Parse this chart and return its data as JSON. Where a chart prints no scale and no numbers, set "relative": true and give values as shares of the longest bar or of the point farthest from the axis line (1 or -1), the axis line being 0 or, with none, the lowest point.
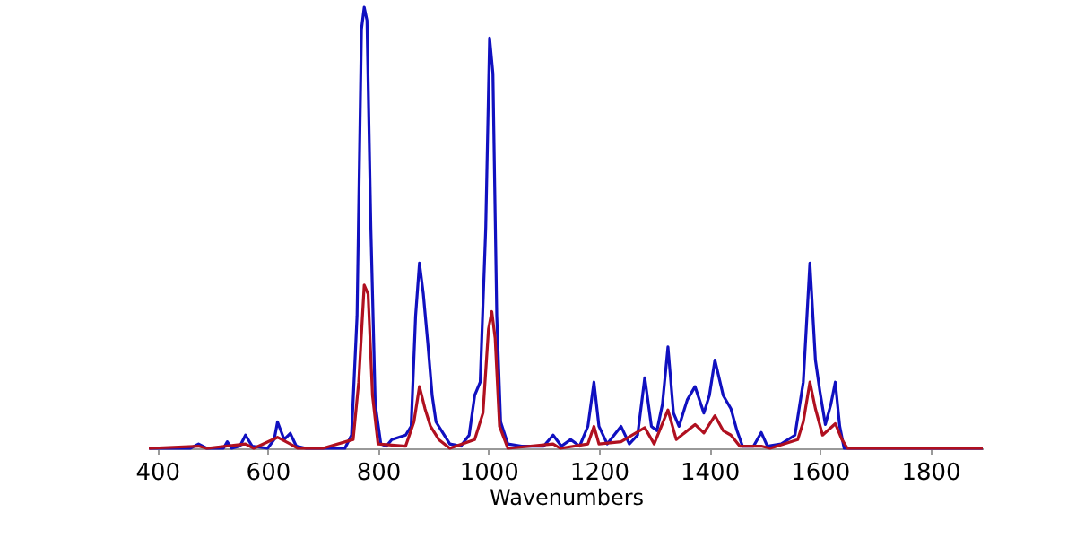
{
  "chart_data": {
    "type": "line",
    "xlabel": "Wavenumbers",
    "relative": true,
    "xlim": [
      385,
      1895
    ],
    "xticks": [
      400,
      600,
      800,
      1000,
      1200,
      1400,
      1600,
      1800
    ],
    "series": [
      {
        "color": "#1010c0",
        "x": [
          385,
          460,
          475,
          490,
          520,
          527,
          535,
          550,
          560,
          572,
          600,
          612,
          618,
          630,
          641,
          652,
          670,
          740,
          752,
          762,
          770,
          775,
          780,
          787,
          795,
          805,
          815,
          825,
          850,
          860,
          868,
          875,
          882,
          890,
          898,
          905,
          915,
          930,
          950,
          965,
          975,
          985,
          995,
          1002,
          1008,
          1015,
          1022,
          1035,
          1060,
          1100,
          1117,
          1132,
          1149,
          1165,
          1180,
          1191,
          1200,
          1215,
          1240,
          1255,
          1270,
          1283,
          1295,
          1305,
          1315,
          1325,
          1335,
          1345,
          1360,
          1374,
          1390,
          1400,
          1410,
          1425,
          1439,
          1450,
          1460,
          1480,
          1494,
          1505,
          1530,
          1555,
          1570,
          1582,
          1592,
          1600,
          1610,
          1620,
          1628,
          1636,
          1644,
          1700,
          1895
        ],
        "values": [
          0,
          0,
          0.01,
          0,
          0,
          0.015,
          0,
          0.005,
          0.03,
          0.005,
          0,
          0.02,
          0.06,
          0.02,
          0.034,
          0.005,
          0,
          0,
          0.03,
          0.3,
          0.95,
          1,
          0.97,
          0.5,
          0.1,
          0.01,
          0.005,
          0.02,
          0.03,
          0.05,
          0.3,
          0.42,
          0.35,
          0.24,
          0.12,
          0.06,
          0.04,
          0.01,
          0.005,
          0.03,
          0.12,
          0.15,
          0.5,
          0.93,
          0.85,
          0.3,
          0.06,
          0.01,
          0.005,
          0.005,
          0.03,
          0.005,
          0.02,
          0.005,
          0.05,
          0.15,
          0.05,
          0.01,
          0.05,
          0.01,
          0.03,
          0.16,
          0.05,
          0.04,
          0.1,
          0.23,
          0.08,
          0.05,
          0.11,
          0.14,
          0.08,
          0.12,
          0.2,
          0.12,
          0.09,
          0.04,
          0.005,
          0.005,
          0.036,
          0.005,
          0.01,
          0.03,
          0.15,
          0.42,
          0.2,
          0.13,
          0.054,
          0.1,
          0.15,
          0.05,
          0,
          0,
          0
        ]
      },
      {
        "color": "#b01020",
        "x": [
          385,
          475,
          490,
          560,
          575,
          618,
          641,
          655,
          700,
          755,
          765,
          775,
          782,
          790,
          800,
          850,
          865,
          875,
          885,
          895,
          910,
          930,
          975,
          990,
          1000,
          1006,
          1012,
          1020,
          1035,
          1117,
          1130,
          1180,
          1191,
          1200,
          1240,
          1283,
          1300,
          1325,
          1340,
          1374,
          1390,
          1410,
          1425,
          1439,
          1455,
          1494,
          1510,
          1560,
          1570,
          1582,
          1592,
          1605,
          1628,
          1640,
          1650,
          1895
        ],
        "values": [
          0,
          0.005,
          0,
          0.01,
          0,
          0.025,
          0.01,
          0,
          0,
          0.02,
          0.15,
          0.37,
          0.35,
          0.12,
          0.01,
          0.005,
          0.06,
          0.14,
          0.09,
          0.05,
          0.02,
          0,
          0.02,
          0.08,
          0.27,
          0.31,
          0.25,
          0.05,
          0,
          0.01,
          0,
          0.01,
          0.05,
          0.01,
          0.015,
          0.047,
          0.01,
          0.087,
          0.02,
          0.054,
          0.035,
          0.074,
          0.04,
          0.03,
          0.005,
          0.005,
          0,
          0.02,
          0.06,
          0.15,
          0.09,
          0.03,
          0.056,
          0.02,
          0,
          0
        ]
      }
    ]
  }
}
